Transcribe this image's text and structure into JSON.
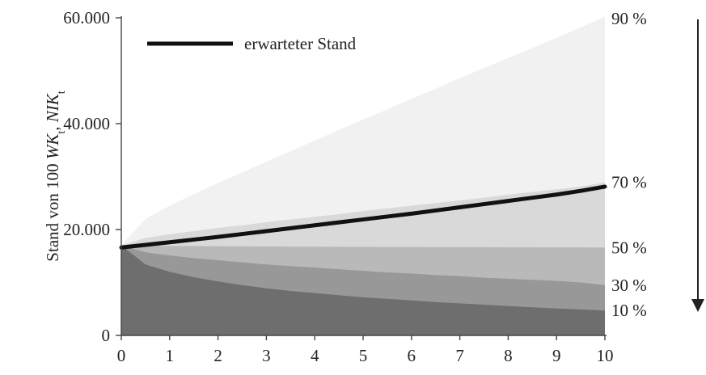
{
  "chart_data": {
    "type": "area",
    "title": "",
    "xlabel": "",
    "ylabel_parts": [
      "Stand von 100 ",
      "WK",
      "t",
      ", ",
      "NIK",
      "t"
    ],
    "xlim": [
      0,
      10
    ],
    "ylim": [
      0,
      60000
    ],
    "x_ticks": [
      "0",
      "1",
      "2",
      "3",
      "4",
      "5",
      "6",
      "7",
      "8",
      "9",
      "10"
    ],
    "y_ticks": [
      {
        "value": 0,
        "label": "0"
      },
      {
        "value": 20000,
        "label": "20.000"
      },
      {
        "value": 40000,
        "label": "40.000"
      },
      {
        "value": 60000,
        "label": "60.000"
      }
    ],
    "x": [
      0,
      0.5,
      1,
      1.5,
      2,
      2.5,
      3,
      3.5,
      4,
      4.5,
      5,
      5.5,
      6,
      6.5,
      7,
      7.5,
      8,
      8.5,
      9,
      9.5,
      10
    ],
    "quantile_bands": [
      {
        "label": "90 %",
        "color": "#f1f1f1",
        "values": [
          17000,
          22000,
          24500,
          26700,
          28800,
          30800,
          32800,
          34800,
          36800,
          38800,
          40800,
          42700,
          44700,
          46600,
          48600,
          50500,
          52400,
          54300,
          56200,
          58200,
          60200
        ]
      },
      {
        "label": "70 %",
        "color": "#d9d9d9",
        "values": [
          17000,
          18400,
          19100,
          19700,
          20300,
          20800,
          21400,
          21900,
          22400,
          22900,
          23500,
          24000,
          24500,
          25000,
          25500,
          26000,
          26600,
          27100,
          27600,
          28100,
          28900
        ]
      },
      {
        "label": "50 %",
        "color": "#b9b9b9",
        "values": [
          17000,
          16950,
          16900,
          16880,
          16850,
          16830,
          16800,
          16780,
          16760,
          16740,
          16720,
          16700,
          16690,
          16680,
          16670,
          16660,
          16650,
          16640,
          16630,
          16620,
          16600
        ]
      },
      {
        "label": "30 %",
        "color": "#989898",
        "values": [
          17000,
          15700,
          15100,
          14600,
          14200,
          13800,
          13400,
          13100,
          12800,
          12500,
          12200,
          11900,
          11700,
          11400,
          11200,
          10900,
          10700,
          10500,
          10300,
          10000,
          9500
        ]
      },
      {
        "label": "10 %",
        "color": "#6e6e6e",
        "values": [
          17000,
          13400,
          12000,
          11000,
          10200,
          9500,
          8900,
          8400,
          8000,
          7600,
          7200,
          6900,
          6600,
          6300,
          6050,
          5800,
          5550,
          5300,
          5100,
          4900,
          4700
        ]
      }
    ],
    "series": [
      {
        "name": "erwarteter Stand",
        "color": "#111111",
        "values": [
          16600,
          17100,
          17600,
          18100,
          18600,
          19150,
          19700,
          20250,
          20800,
          21350,
          21900,
          22450,
          23000,
          23600,
          24200,
          24800,
          25400,
          26000,
          26600,
          27300,
          28100
        ]
      }
    ],
    "legend": {
      "placement": "top-left",
      "entries": [
        "erwarteter Stand"
      ]
    },
    "grid": false,
    "side_arrow": "down"
  }
}
